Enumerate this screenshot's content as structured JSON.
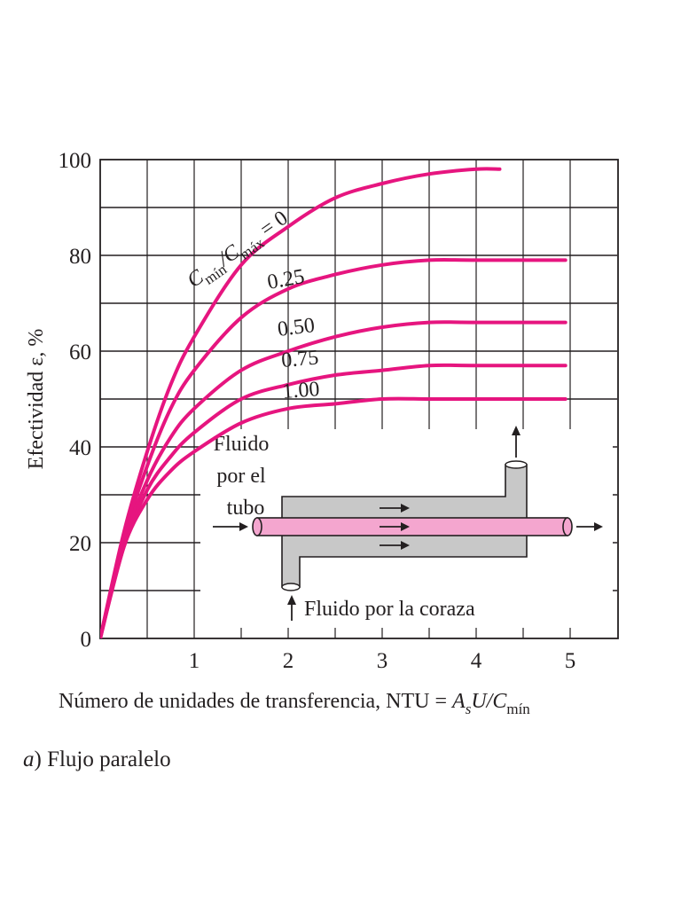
{
  "chart_data": {
    "type": "line",
    "title": "",
    "caption_prefix": "a",
    "caption_text": ") Flujo paralelo",
    "xlabel_prefix": "Número de unidades de transferencia, NTU = ",
    "xlabel_A": "A",
    "xlabel_s": "s",
    "xlabel_UC": "U/C",
    "xlabel_sub": "mín",
    "ylabel": "Efectividad ε, %",
    "xlim": [
      0,
      5.5
    ],
    "ylim": [
      0,
      100
    ],
    "x_ticks": [
      "1",
      "2",
      "3",
      "4",
      "5"
    ],
    "y_ticks": [
      "0",
      "20",
      "40",
      "60",
      "80",
      "100"
    ],
    "grid": true,
    "series_ratio_label": {
      "C1": "C",
      "sub1": "mín",
      "slash": "/C",
      "sub2": "máx",
      "eq": " = 0"
    },
    "series": [
      {
        "name": "0",
        "label": "",
        "xmax": 4.25,
        "points": [
          [
            0,
            0
          ],
          [
            0.25,
            22
          ],
          [
            0.5,
            39
          ],
          [
            0.75,
            53
          ],
          [
            1,
            63
          ],
          [
            1.5,
            78
          ],
          [
            2,
            86
          ],
          [
            2.5,
            92
          ],
          [
            3,
            95
          ],
          [
            3.5,
            97
          ],
          [
            4,
            98
          ],
          [
            4.25,
            98
          ]
        ]
      },
      {
        "name": "0.25",
        "label": "0.25",
        "xmax": 4.95,
        "points": [
          [
            0,
            0
          ],
          [
            0.25,
            21
          ],
          [
            0.5,
            36
          ],
          [
            0.75,
            48
          ],
          [
            1,
            56
          ],
          [
            1.5,
            67
          ],
          [
            2,
            73
          ],
          [
            2.5,
            76
          ],
          [
            3,
            78
          ],
          [
            3.5,
            79
          ],
          [
            4,
            79
          ],
          [
            4.95,
            79
          ]
        ]
      },
      {
        "name": "0.50",
        "label": "0.50",
        "xmax": 4.95,
        "points": [
          [
            0,
            0
          ],
          [
            0.25,
            20
          ],
          [
            0.5,
            33
          ],
          [
            0.75,
            42
          ],
          [
            1,
            48
          ],
          [
            1.5,
            56
          ],
          [
            2,
            60
          ],
          [
            2.5,
            63
          ],
          [
            3,
            65
          ],
          [
            3.5,
            66
          ],
          [
            4,
            66
          ],
          [
            4.95,
            66
          ]
        ]
      },
      {
        "name": "0.75",
        "label": "0.75",
        "xmax": 4.95,
        "points": [
          [
            0,
            0
          ],
          [
            0.25,
            19
          ],
          [
            0.5,
            31
          ],
          [
            0.75,
            38
          ],
          [
            1,
            43
          ],
          [
            1.5,
            50
          ],
          [
            2,
            53
          ],
          [
            2.5,
            55
          ],
          [
            3,
            56
          ],
          [
            3.5,
            57
          ],
          [
            4,
            57
          ],
          [
            4.95,
            57
          ]
        ]
      },
      {
        "name": "1.00",
        "label": "1.00",
        "xmax": 4.95,
        "points": [
          [
            0,
            0
          ],
          [
            0.25,
            19
          ],
          [
            0.5,
            29
          ],
          [
            0.75,
            35
          ],
          [
            1,
            39
          ],
          [
            1.5,
            45
          ],
          [
            2,
            48
          ],
          [
            2.5,
            49
          ],
          [
            3,
            50
          ],
          [
            3.5,
            50
          ],
          [
            4,
            50
          ],
          [
            4.95,
            50
          ]
        ]
      }
    ],
    "inset": {
      "tube_fluid_lines": [
        "Fluido",
        "por el",
        "tubo"
      ],
      "shell_fluid": "Fluido por la coraza"
    },
    "colors": {
      "curve": "#e6157f",
      "tube": "#f4a6cf",
      "shell": "#c8c8c8",
      "ink": "#231f20"
    }
  }
}
